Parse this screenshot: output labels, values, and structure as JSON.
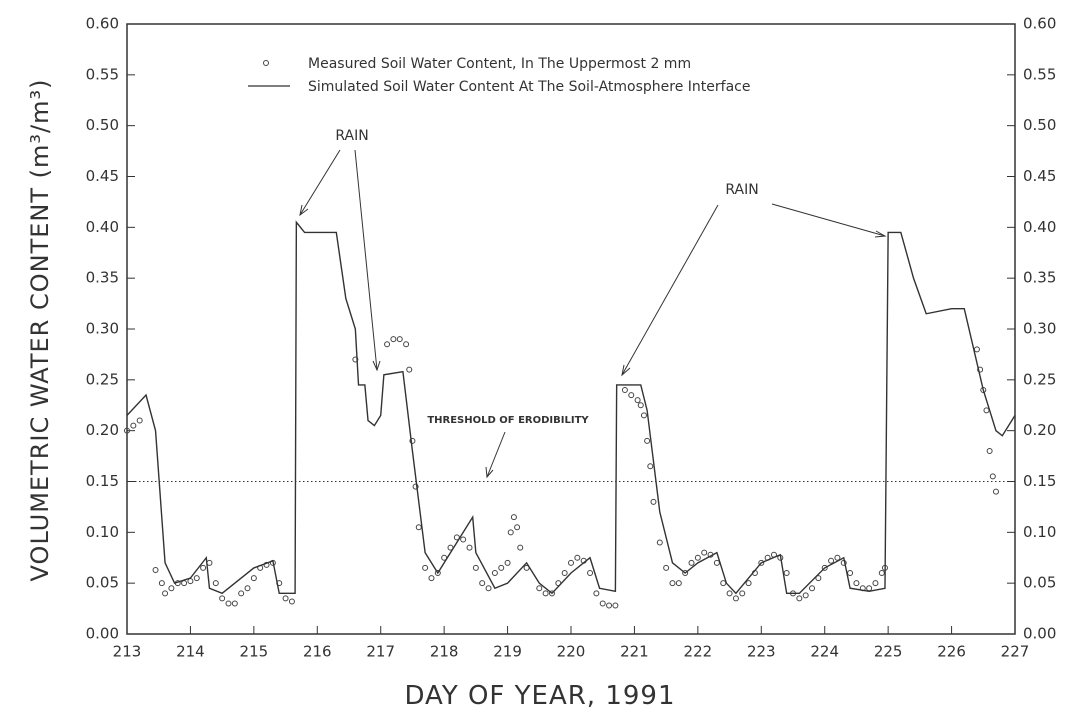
{
  "chart_data": {
    "type": "line",
    "xlabel": "DAY OF YEAR, 1991",
    "ylabel": "VOLUMETRIC WATER CONTENT (m³/m³)",
    "xlim": [
      213,
      227
    ],
    "xticks": [
      213,
      214,
      215,
      216,
      217,
      218,
      219,
      220,
      221,
      222,
      223,
      224,
      225,
      226,
      227
    ],
    "ylim": [
      0,
      0.6
    ],
    "yticks": [
      {
        "value": 0,
        "label": "0.00"
      },
      {
        "value": 0.05,
        "label": "0.05"
      },
      {
        "value": 0.1,
        "label": "0.10"
      },
      {
        "value": 0.15,
        "label": "0.15"
      },
      {
        "value": 0.2,
        "label": "0.20"
      },
      {
        "value": 0.25,
        "label": "0.25"
      },
      {
        "value": 0.3,
        "label": "0.30"
      },
      {
        "value": 0.35,
        "label": "0.35"
      },
      {
        "value": 0.4,
        "label": "0.40"
      },
      {
        "value": 0.45,
        "label": "0.45"
      },
      {
        "value": 0.5,
        "label": "0.50"
      },
      {
        "value": 0.55,
        "label": "0.55"
      },
      {
        "value": 0.6,
        "label": "0.60"
      }
    ],
    "y2lim": [
      0,
      0.6
    ],
    "y2ticks": [
      {
        "value": 0,
        "label": "0.00"
      },
      {
        "value": 0.05,
        "label": "0.05"
      },
      {
        "value": 0.1,
        "label": "0.10"
      },
      {
        "value": 0.15,
        "label": "0.15"
      },
      {
        "value": 0.2,
        "label": "0.20"
      },
      {
        "value": 0.25,
        "label": "0.25"
      },
      {
        "value": 0.3,
        "label": "0.30"
      },
      {
        "value": 0.35,
        "label": "0.35"
      },
      {
        "value": 0.4,
        "label": "0.40"
      },
      {
        "value": 0.45,
        "label": "0.45"
      },
      {
        "value": 0.5,
        "label": "0.50"
      },
      {
        "value": 0.55,
        "label": "0.55"
      },
      {
        "value": 0.6,
        "label": "0.60"
      }
    ],
    "threshold": {
      "label": "THRESHOLD OF ERODIBILITY",
      "value": 0.15
    },
    "annotations": [
      "RAIN",
      "RAIN"
    ],
    "series": [
      {
        "name": "Measured Soil Water Content, In The Uppermost 2 mm",
        "type": "scatter",
        "color": "#444444",
        "x": [
          213.0,
          213.1,
          213.2,
          213.45,
          213.55,
          213.6,
          213.7,
          213.8,
          213.9,
          214.0,
          214.1,
          214.2,
          214.3,
          214.4,
          214.5,
          214.6,
          214.7,
          214.8,
          214.9,
          215.0,
          215.1,
          215.2,
          215.3,
          215.4,
          215.5,
          215.6,
          216.6,
          217.1,
          217.2,
          217.3,
          217.4,
          217.45,
          217.5,
          217.55,
          217.6,
          217.7,
          217.8,
          217.9,
          218.0,
          218.1,
          218.2,
          218.3,
          218.4,
          218.5,
          218.6,
          218.7,
          218.8,
          218.9,
          219.0,
          219.05,
          219.1,
          219.15,
          219.2,
          219.3,
          219.5,
          219.6,
          219.7,
          219.8,
          219.9,
          220.0,
          220.1,
          220.2,
          220.3,
          220.4,
          220.5,
          220.6,
          220.7,
          220.85,
          220.95,
          221.05,
          221.1,
          221.15,
          221.2,
          221.25,
          221.3,
          221.4,
          221.5,
          221.6,
          221.7,
          221.8,
          221.9,
          222.0,
          222.1,
          222.2,
          222.3,
          222.4,
          222.5,
          222.6,
          222.7,
          222.8,
          222.9,
          223.0,
          223.1,
          223.2,
          223.3,
          223.4,
          223.5,
          223.6,
          223.7,
          223.8,
          223.9,
          224.0,
          224.1,
          224.2,
          224.3,
          224.4,
          224.5,
          224.6,
          224.7,
          224.8,
          224.9,
          224.95,
          226.4,
          226.45,
          226.5,
          226.55,
          226.6,
          226.65,
          226.7
        ],
        "values": [
          0.2,
          0.205,
          0.21,
          0.063,
          0.05,
          0.04,
          0.045,
          0.05,
          0.05,
          0.052,
          0.055,
          0.065,
          0.07,
          0.05,
          0.035,
          0.03,
          0.03,
          0.04,
          0.045,
          0.055,
          0.065,
          0.068,
          0.07,
          0.05,
          0.035,
          0.032,
          0.27,
          0.285,
          0.29,
          0.29,
          0.285,
          0.26,
          0.19,
          0.145,
          0.105,
          0.065,
          0.055,
          0.06,
          0.075,
          0.085,
          0.095,
          0.093,
          0.085,
          0.065,
          0.05,
          0.045,
          0.06,
          0.065,
          0.07,
          0.1,
          0.115,
          0.105,
          0.085,
          0.065,
          0.045,
          0.04,
          0.04,
          0.05,
          0.06,
          0.07,
          0.075,
          0.072,
          0.06,
          0.04,
          0.03,
          0.028,
          0.028,
          0.24,
          0.235,
          0.23,
          0.225,
          0.215,
          0.19,
          0.165,
          0.13,
          0.09,
          0.065,
          0.05,
          0.05,
          0.06,
          0.07,
          0.075,
          0.08,
          0.078,
          0.07,
          0.05,
          0.04,
          0.035,
          0.04,
          0.05,
          0.06,
          0.07,
          0.075,
          0.078,
          0.075,
          0.06,
          0.04,
          0.035,
          0.038,
          0.045,
          0.055,
          0.065,
          0.072,
          0.075,
          0.07,
          0.06,
          0.05,
          0.045,
          0.045,
          0.05,
          0.06,
          0.065,
          0.28,
          0.26,
          0.24,
          0.22,
          0.18,
          0.155,
          0.14
        ]
      },
      {
        "name": "Simulated Soil Water Content At The Soil-Atmosphere Interface",
        "type": "line",
        "color": "#333333",
        "x": [
          213.0,
          213.3,
          213.45,
          213.6,
          213.75,
          214.0,
          214.25,
          214.3,
          214.5,
          214.8,
          215.0,
          215.3,
          215.4,
          215.65,
          215.67,
          215.8,
          216.3,
          216.45,
          216.6,
          216.65,
          216.75,
          216.8,
          216.9,
          217.0,
          217.05,
          217.35,
          217.5,
          217.7,
          217.9,
          218.2,
          218.45,
          218.5,
          218.8,
          219.0,
          219.3,
          219.5,
          219.7,
          220.0,
          220.3,
          220.45,
          220.7,
          220.72,
          221.1,
          221.2,
          221.4,
          221.6,
          221.8,
          222.0,
          222.3,
          222.45,
          222.6,
          223.0,
          223.3,
          223.4,
          223.6,
          224.0,
          224.3,
          224.4,
          224.7,
          224.95,
          225.0,
          225.2,
          225.4,
          225.6,
          226.0,
          226.2,
          226.35,
          226.5,
          226.7,
          226.8,
          227.0
        ],
        "values": [
          0.215,
          0.235,
          0.2,
          0.07,
          0.05,
          0.055,
          0.075,
          0.045,
          0.04,
          0.055,
          0.065,
          0.072,
          0.04,
          0.04,
          0.405,
          0.395,
          0.395,
          0.33,
          0.3,
          0.245,
          0.245,
          0.21,
          0.205,
          0.215,
          0.255,
          0.258,
          0.18,
          0.08,
          0.06,
          0.09,
          0.115,
          0.08,
          0.045,
          0.05,
          0.07,
          0.05,
          0.04,
          0.06,
          0.075,
          0.045,
          0.042,
          0.245,
          0.245,
          0.22,
          0.12,
          0.07,
          0.06,
          0.07,
          0.08,
          0.05,
          0.04,
          0.07,
          0.078,
          0.04,
          0.04,
          0.065,
          0.075,
          0.045,
          0.042,
          0.045,
          0.395,
          0.395,
          0.35,
          0.315,
          0.32,
          0.32,
          0.28,
          0.24,
          0.2,
          0.195,
          0.215
        ]
      }
    ]
  }
}
